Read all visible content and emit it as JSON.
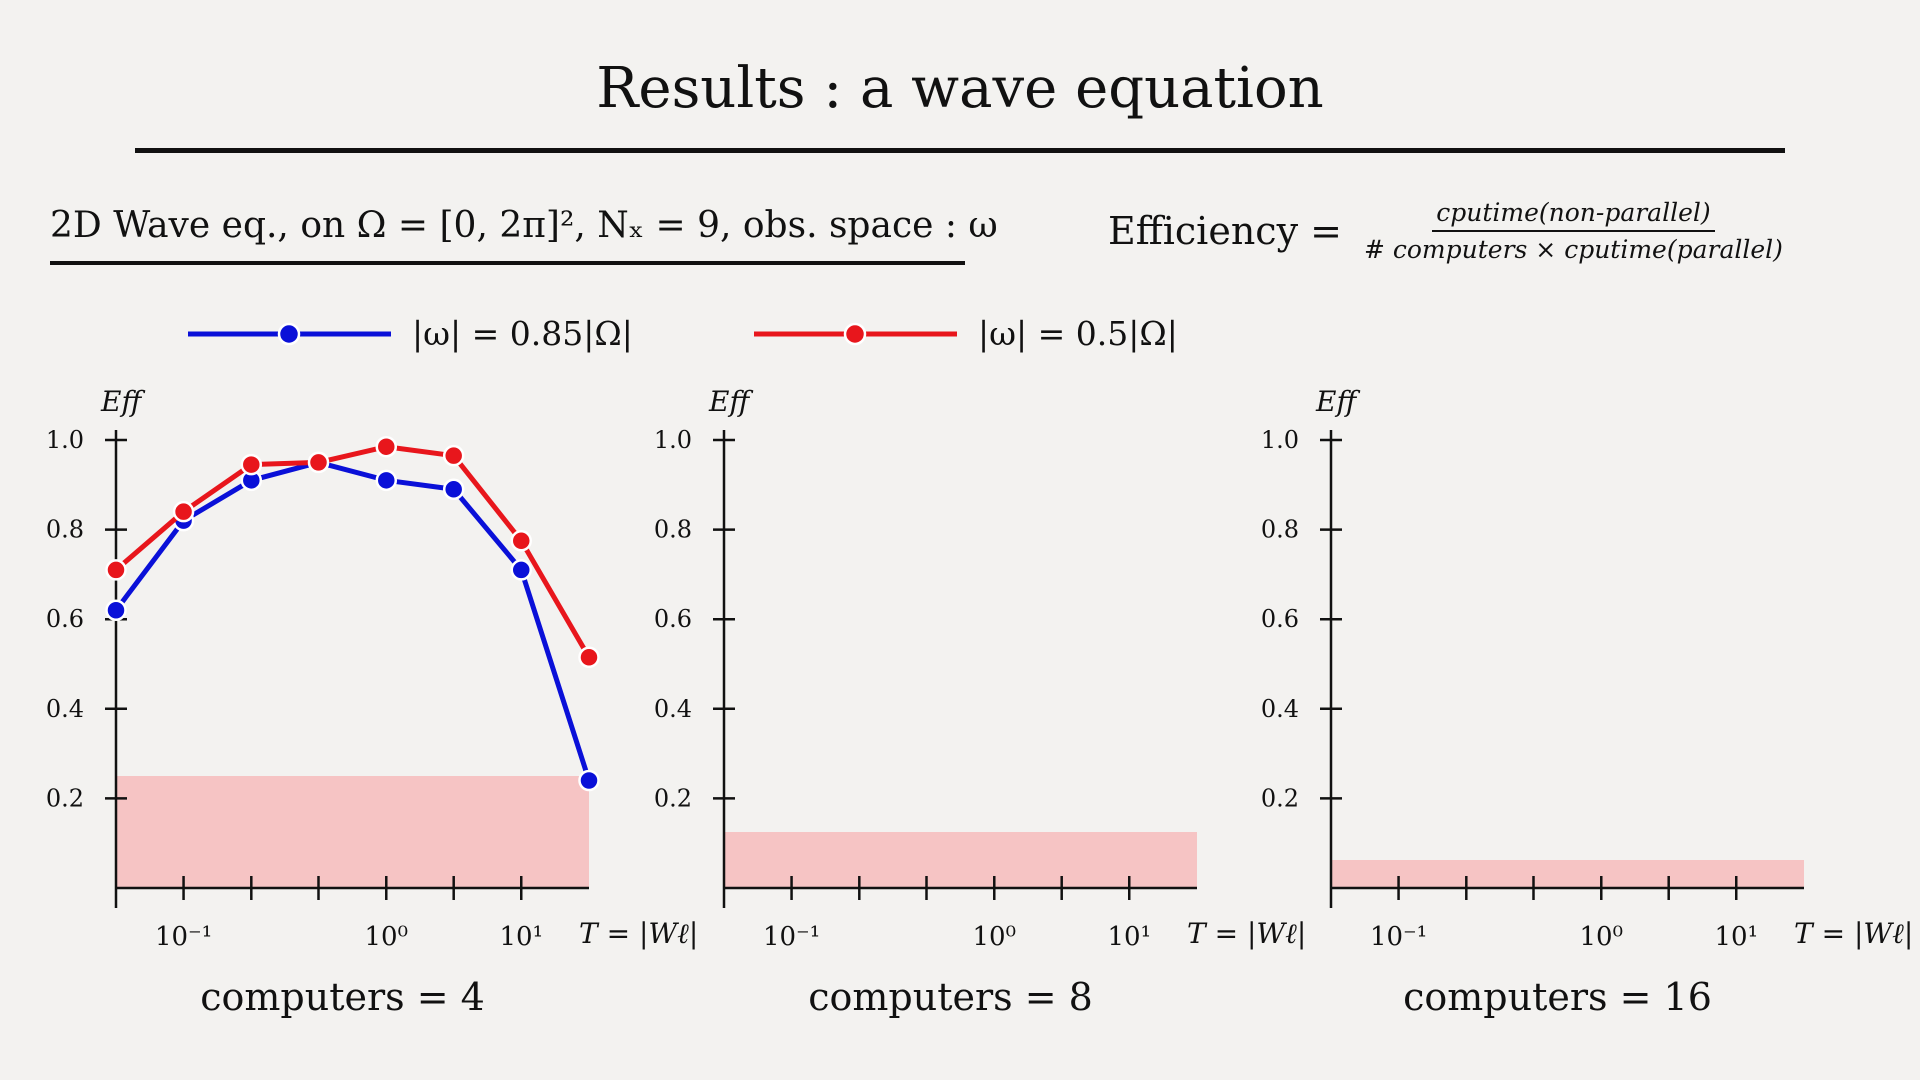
{
  "header": {
    "title": "Results : a wave equation",
    "subtitle": "2D Wave eq., on Ω = [0, 2π]², Nₓ = 9, obs. space : ω",
    "efficiency_label": "Efficiency =",
    "efficiency_numerator": "cputime(non-parallel)",
    "efficiency_denominator": "# computers × cputime(parallel)"
  },
  "colors": {
    "series_blue": "#0a10d8",
    "series_red": "#e8161c",
    "band": "#f6c4c4"
  },
  "chart_data": {
    "type": "line",
    "xscale": "log",
    "xlabel": "T = |Wℓ|",
    "ylabel": "Eff",
    "ylim": [
      0,
      1.0
    ],
    "yticks": [
      0.2,
      0.4,
      0.6,
      0.8,
      1.0
    ],
    "xtick_labels": [
      {
        "value": 0.1,
        "label": "10⁻¹"
      },
      {
        "value": 1,
        "label": "10⁰"
      },
      {
        "value": 10,
        "label": "10¹"
      }
    ],
    "legend_position": "top",
    "series": [
      {
        "name": "|ω| = 0.85|Ω|",
        "color": "#0a10d8"
      },
      {
        "name": "|ω| = 0.5|Ω|",
        "color": "#e8161c"
      }
    ],
    "panels": [
      {
        "caption": "computers = 4",
        "ideal_band": 0.25,
        "series": [
          {
            "name": "|ω| = 0.85|Ω|",
            "x": [
              0.0316,
              0.0794,
              0.2,
              0.5,
              1.26,
              3.16,
              7.94,
              20
            ],
            "y": [
              0.62,
              0.82,
              0.91,
              0.95,
              0.91,
              0.89,
              0.71,
              0.24
            ]
          },
          {
            "name": "|ω| = 0.5|Ω|",
            "x": [
              0.0316,
              0.0794,
              0.2,
              0.5,
              1.26,
              3.16,
              7.94,
              20
            ],
            "y": [
              0.71,
              0.84,
              0.945,
              0.95,
              0.985,
              0.965,
              0.775,
              0.515
            ]
          }
        ]
      },
      {
        "caption": "computers = 8",
        "ideal_band": 0.125,
        "series": []
      },
      {
        "caption": "computers = 16",
        "ideal_band": 0.0625,
        "series": []
      }
    ]
  }
}
